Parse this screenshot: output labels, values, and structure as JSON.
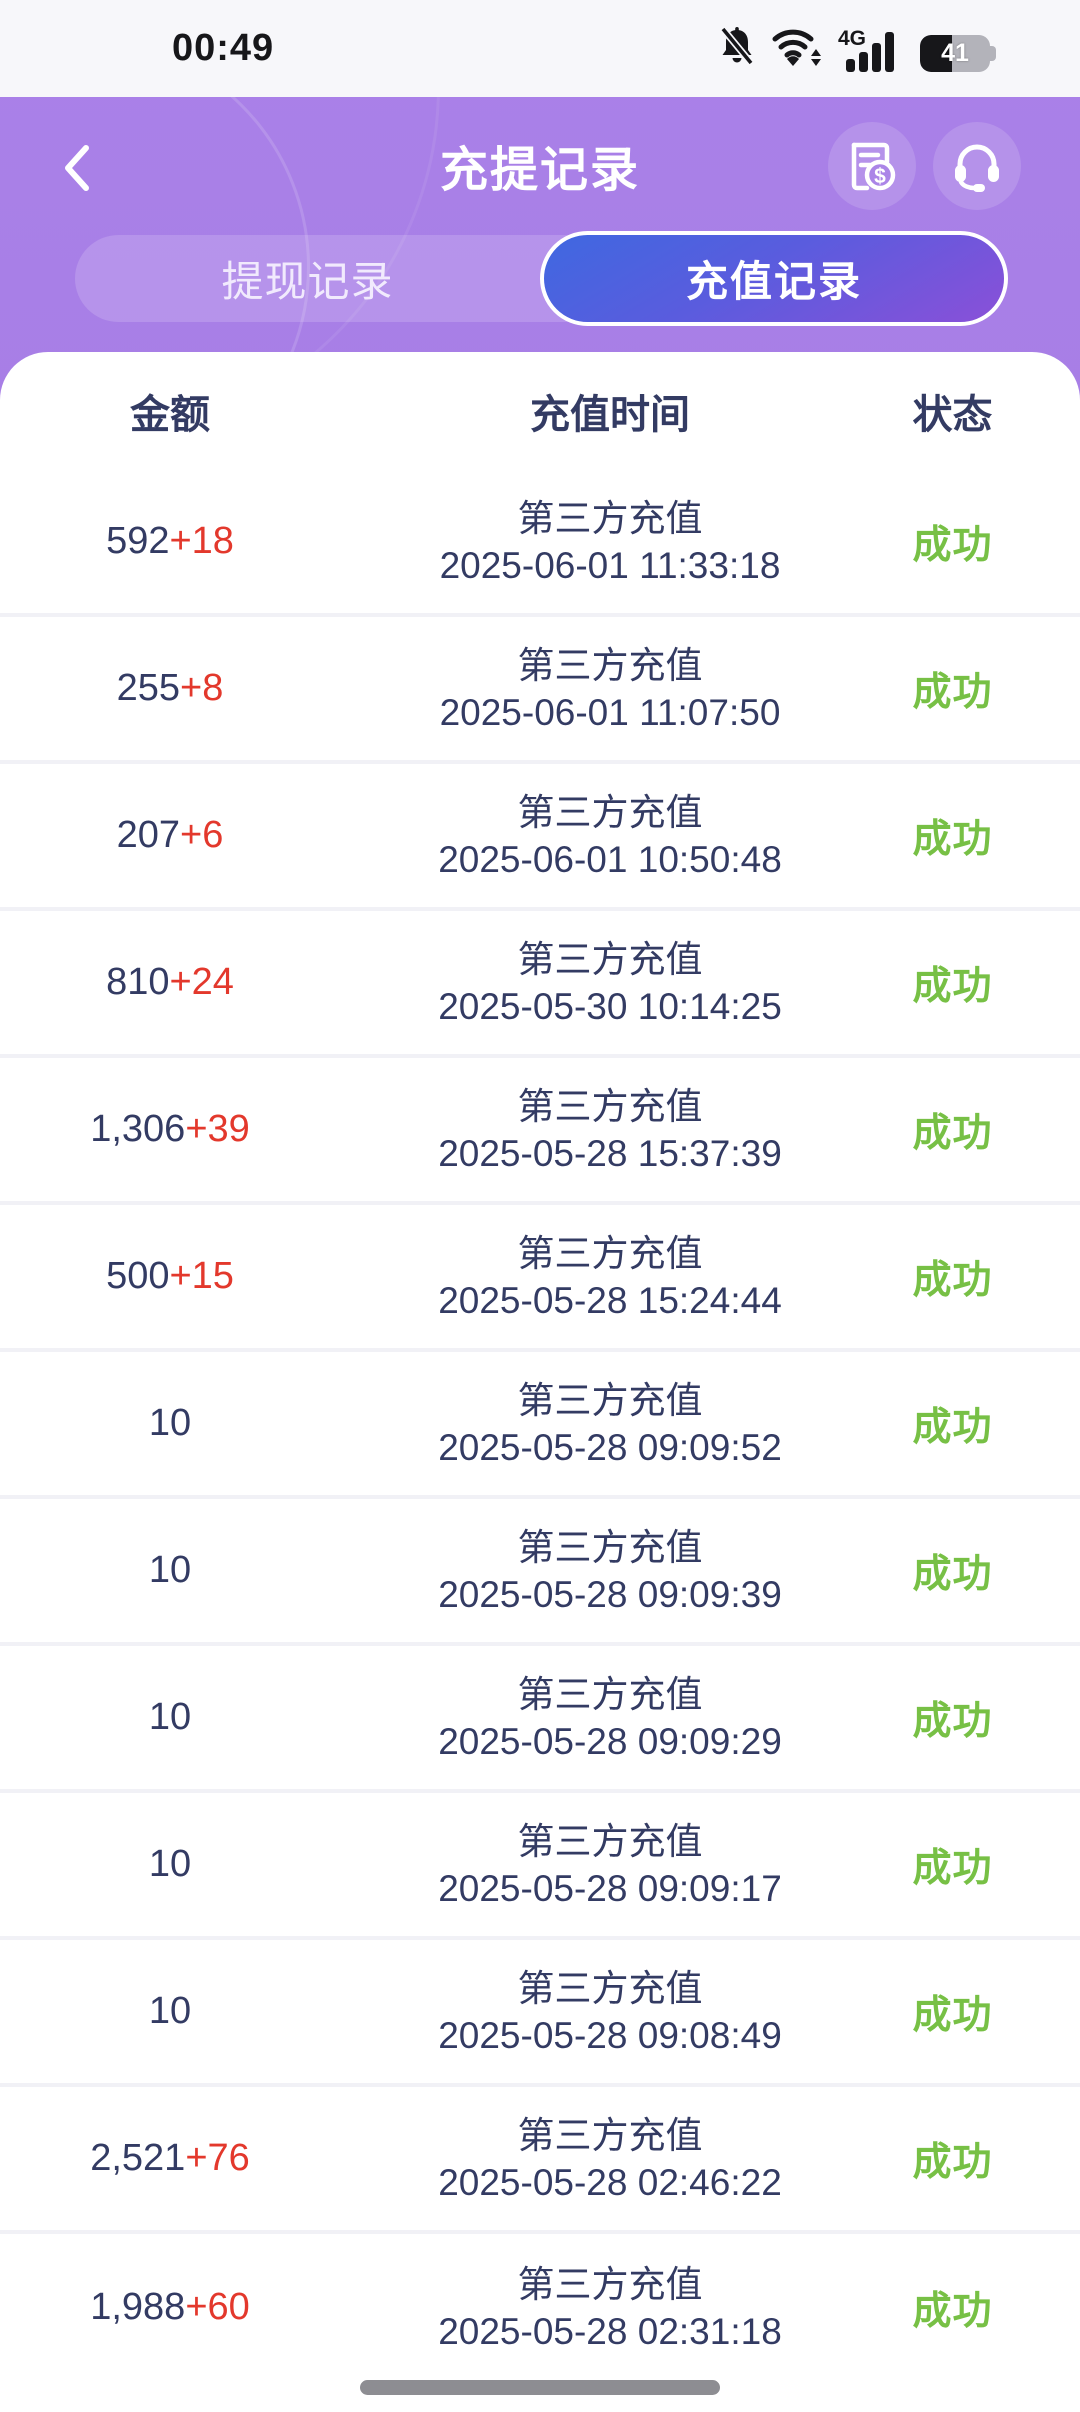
{
  "status_bar": {
    "time": "00:49",
    "network_type": "4G",
    "battery_percent": "41",
    "icons": [
      "notification-muted-icon",
      "wifi-icon",
      "signal-strength-icon",
      "battery-icon"
    ]
  },
  "header": {
    "title": "充提记录",
    "back_icon": "chevron-left",
    "action_icons": [
      "billing-record-icon",
      "customer-service-icon"
    ]
  },
  "tabs": [
    {
      "label": "提现记录",
      "active": false
    },
    {
      "label": "充值记录",
      "active": true
    }
  ],
  "table": {
    "columns": [
      "金额",
      "充值时间",
      "状态"
    ],
    "rows": [
      {
        "amount": "592",
        "bonus": "+18",
        "method": "第三方充值",
        "time": "2025-06-01 11:33:18",
        "status": "成功"
      },
      {
        "amount": "255",
        "bonus": "+8",
        "method": "第三方充值",
        "time": "2025-06-01 11:07:50",
        "status": "成功"
      },
      {
        "amount": "207",
        "bonus": "+6",
        "method": "第三方充值",
        "time": "2025-06-01 10:50:48",
        "status": "成功"
      },
      {
        "amount": "810",
        "bonus": "+24",
        "method": "第三方充值",
        "time": "2025-05-30 10:14:25",
        "status": "成功"
      },
      {
        "amount": "1,306",
        "bonus": "+39",
        "method": "第三方充值",
        "time": "2025-05-28 15:37:39",
        "status": "成功"
      },
      {
        "amount": "500",
        "bonus": "+15",
        "method": "第三方充值",
        "time": "2025-05-28 15:24:44",
        "status": "成功"
      },
      {
        "amount": "10",
        "bonus": "",
        "method": "第三方充值",
        "time": "2025-05-28 09:09:52",
        "status": "成功"
      },
      {
        "amount": "10",
        "bonus": "",
        "method": "第三方充值",
        "time": "2025-05-28 09:09:39",
        "status": "成功"
      },
      {
        "amount": "10",
        "bonus": "",
        "method": "第三方充值",
        "time": "2025-05-28 09:09:29",
        "status": "成功"
      },
      {
        "amount": "10",
        "bonus": "",
        "method": "第三方充值",
        "time": "2025-05-28 09:09:17",
        "status": "成功"
      },
      {
        "amount": "10",
        "bonus": "",
        "method": "第三方充值",
        "time": "2025-05-28 09:08:49",
        "status": "成功"
      },
      {
        "amount": "2,521",
        "bonus": "+76",
        "method": "第三方充值",
        "time": "2025-05-28 02:46:22",
        "status": "成功"
      },
      {
        "amount": "1,988",
        "bonus": "+60",
        "method": "第三方充值",
        "time": "2025-05-28 02:31:18",
        "status": "成功"
      }
    ]
  },
  "colors": {
    "header_purple": "#a078e2",
    "active_tab_gradient_start": "#3f68e0",
    "active_tab_gradient_end": "#8a50d8",
    "amount_text": "#333b63",
    "bonus_text": "#e3382c",
    "status_success": "#77c045",
    "divider": "#f1f1f6"
  }
}
